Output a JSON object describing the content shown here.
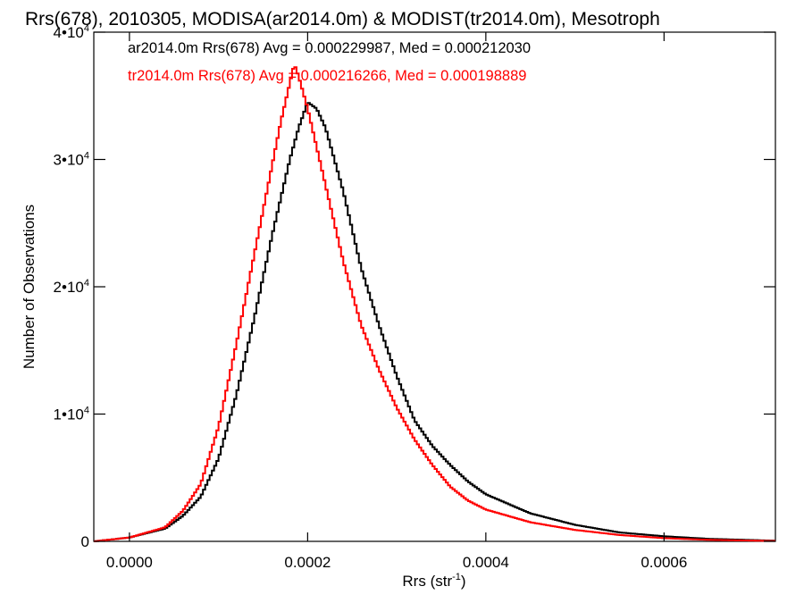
{
  "chart_data": {
    "type": "line",
    "title": "Rrs(678), 2010305, MODISA(ar2014.0m) & MODIST(tr2014.0m), Mesotroph",
    "xlabel": "Rrs (str",
    "xlabel_exponent": "-1",
    "xlabel_close": ")",
    "ylabel": "Number of Observations",
    "xlim": [
      -4e-05,
      0.000725
    ],
    "ylim": [
      0,
      40000
    ],
    "xticks": [
      {
        "value": 0.0,
        "label": "0.0000"
      },
      {
        "value": 0.0002,
        "label": "0.0002"
      },
      {
        "value": 0.0004,
        "label": "0.0004"
      },
      {
        "value": 0.0006,
        "label": "0.0006"
      }
    ],
    "yticks": [
      {
        "value": 0,
        "mantissa": "0",
        "exponent": ""
      },
      {
        "value": 10000,
        "mantissa": "1•10",
        "exponent": "4"
      },
      {
        "value": 20000,
        "mantissa": "2•10",
        "exponent": "4"
      },
      {
        "value": 30000,
        "mantissa": "3•10",
        "exponent": "4"
      },
      {
        "value": 40000,
        "mantissa": "4•10",
        "exponent": "4"
      }
    ],
    "grid": false,
    "legend_position": "top-left",
    "series": [
      {
        "name": "ar2014.0m Rrs(678) Avg = 0.000229987, Med = 0.000212030",
        "color": "#000000",
        "style": "step",
        "points": [
          [
            -4e-05,
            0
          ],
          [
            0.0,
            300
          ],
          [
            4e-05,
            1000
          ],
          [
            6e-05,
            2000
          ],
          [
            8e-05,
            3500
          ],
          [
            0.0001,
            6500
          ],
          [
            0.00012,
            11500
          ],
          [
            0.00014,
            17500
          ],
          [
            0.00016,
            24000
          ],
          [
            0.00018,
            30000
          ],
          [
            0.00019,
            32500
          ],
          [
            0.0002,
            34500
          ],
          [
            0.00021,
            34000
          ],
          [
            0.00022,
            32500
          ],
          [
            0.00024,
            27500
          ],
          [
            0.00026,
            21500
          ],
          [
            0.00028,
            17000
          ],
          [
            0.0003,
            13000
          ],
          [
            0.00032,
            9500
          ],
          [
            0.00034,
            7500
          ],
          [
            0.00036,
            6000
          ],
          [
            0.00038,
            4700
          ],
          [
            0.0004,
            3700
          ],
          [
            0.00045,
            2200
          ],
          [
            0.0005,
            1300
          ],
          [
            0.00055,
            700
          ],
          [
            0.0006,
            400
          ],
          [
            0.00065,
            200
          ],
          [
            0.0007,
            100
          ],
          [
            0.000725,
            50
          ]
        ]
      },
      {
        "name": "tr2014.0m Rrs(678) Avg = 0.000216266, Med = 0.000198889",
        "color": "#ff0000",
        "style": "step",
        "points": [
          [
            -4e-05,
            0
          ],
          [
            0.0,
            300
          ],
          [
            4e-05,
            1100
          ],
          [
            6e-05,
            2400
          ],
          [
            8e-05,
            4500
          ],
          [
            0.0001,
            9000
          ],
          [
            0.00012,
            15500
          ],
          [
            0.00014,
            22500
          ],
          [
            0.00016,
            29500
          ],
          [
            0.00017,
            33000
          ],
          [
            0.00018,
            36000
          ],
          [
            0.000185,
            37500
          ],
          [
            0.00019,
            36500
          ],
          [
            0.0002,
            34000
          ],
          [
            0.00022,
            28000
          ],
          [
            0.00024,
            22000
          ],
          [
            0.00026,
            17000
          ],
          [
            0.00028,
            13500
          ],
          [
            0.0003,
            10500
          ],
          [
            0.00032,
            8000
          ],
          [
            0.00034,
            6000
          ],
          [
            0.00036,
            4300
          ],
          [
            0.00038,
            3200
          ],
          [
            0.0004,
            2500
          ],
          [
            0.00045,
            1500
          ],
          [
            0.0005,
            900
          ],
          [
            0.00055,
            500
          ],
          [
            0.0006,
            250
          ],
          [
            0.00065,
            120
          ],
          [
            0.0007,
            60
          ],
          [
            0.000725,
            30
          ]
        ]
      }
    ]
  }
}
